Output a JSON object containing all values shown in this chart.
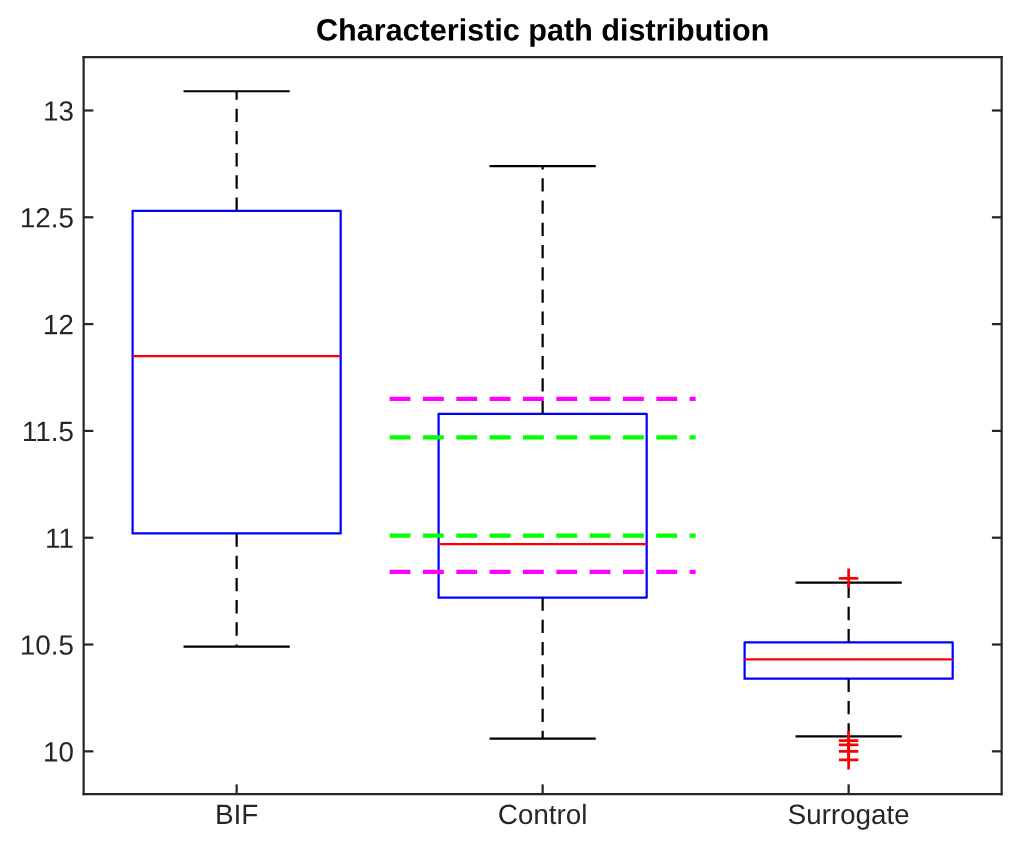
{
  "chart_data": {
    "type": "box",
    "title": "Characteristic path distribution",
    "categories": [
      "BIF",
      "Control",
      "Surrogate"
    ],
    "boxes": [
      {
        "low": 10.49,
        "q1": 11.02,
        "median": 11.85,
        "q3": 12.53,
        "high": 13.09
      },
      {
        "low": 10.06,
        "q1": 10.72,
        "median": 10.97,
        "q3": 11.58,
        "high": 12.74
      },
      {
        "low": 10.07,
        "q1": 10.34,
        "median": 10.43,
        "q3": 10.51,
        "high": 10.79,
        "outliers": [
          10.81,
          10.05,
          10.03,
          10.0,
          9.96
        ]
      }
    ],
    "ylim": [
      9.8,
      13.25
    ],
    "yticks": [
      10,
      10.5,
      11,
      11.5,
      12,
      12.5,
      13
    ],
    "grid": false,
    "ref_lines": [
      {
        "axis": "y",
        "value": 11.65,
        "color": "#ff00ff",
        "line_style": "dashed"
      },
      {
        "axis": "y",
        "value": 11.47,
        "color": "#00ff00",
        "line_style": "dashed"
      },
      {
        "axis": "y",
        "value": 11.01,
        "color": "#00ff00",
        "line_style": "dashed"
      },
      {
        "axis": "y",
        "value": 10.84,
        "color": "#ff00ff",
        "line_style": "dashed"
      }
    ]
  }
}
